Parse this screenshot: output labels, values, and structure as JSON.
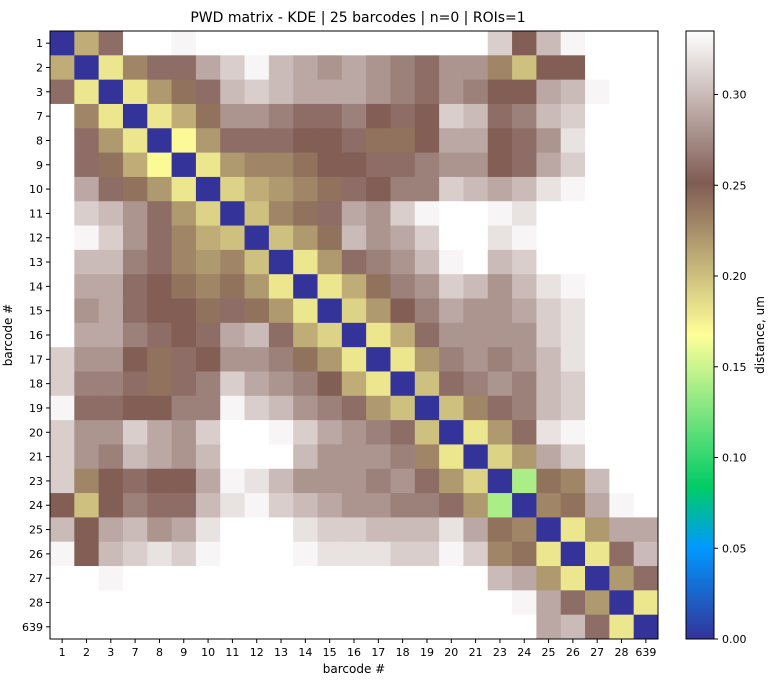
{
  "chart_data": {
    "type": "heatmap",
    "title": "PWD matrix - KDE | 25 barcodes | n=0 | ROIs=1",
    "xlabel": "barcode #",
    "ylabel": "barcode #",
    "categories": [
      "1",
      "2",
      "3",
      "7",
      "8",
      "9",
      "10",
      "11",
      "12",
      "13",
      "14",
      "15",
      "16",
      "17",
      "18",
      "19",
      "20",
      "21",
      "23",
      "24",
      "25",
      "26",
      "27",
      "28",
      "639"
    ],
    "colorbar": {
      "label": "distance, um",
      "ticks": [
        "0.00",
        "0.05",
        "0.10",
        "0.15",
        "0.20",
        "0.25",
        "0.30"
      ],
      "tick_values": [
        0,
        0.05,
        0.1,
        0.15,
        0.2,
        0.25,
        0.3
      ],
      "vmin": 0,
      "vmax": 0.335,
      "colormap": "terrain",
      "missing_color": "#ffffff"
    },
    "values": [
      [
        0.0,
        0.21,
        0.26,
        null,
        null,
        0.33,
        null,
        null,
        null,
        null,
        null,
        null,
        null,
        null,
        null,
        null,
        null,
        null,
        0.31,
        0.25,
        0.3,
        0.33,
        null,
        null,
        null
      ],
      [
        0.21,
        0.0,
        0.18,
        0.23,
        0.26,
        0.26,
        0.29,
        0.31,
        0.33,
        0.3,
        0.29,
        0.28,
        0.29,
        0.28,
        0.27,
        0.26,
        0.28,
        0.28,
        0.23,
        0.2,
        0.25,
        0.25,
        null,
        null,
        null
      ],
      [
        0.26,
        0.18,
        0.0,
        0.18,
        0.22,
        0.24,
        0.26,
        0.3,
        0.31,
        0.3,
        0.29,
        0.29,
        0.29,
        0.28,
        0.27,
        0.26,
        0.28,
        0.27,
        0.25,
        0.25,
        0.29,
        0.3,
        0.33,
        null,
        null
      ],
      [
        null,
        0.23,
        0.18,
        0.0,
        0.18,
        0.21,
        0.24,
        0.28,
        0.28,
        0.27,
        0.26,
        0.26,
        0.27,
        0.25,
        0.26,
        0.25,
        0.31,
        0.3,
        0.26,
        0.27,
        0.3,
        0.31,
        null,
        null,
        null
      ],
      [
        null,
        0.26,
        0.22,
        0.18,
        0.0,
        0.17,
        0.22,
        0.26,
        0.26,
        0.26,
        0.25,
        0.25,
        0.26,
        0.24,
        0.24,
        0.25,
        0.29,
        0.29,
        0.25,
        0.26,
        0.28,
        0.32,
        null,
        null,
        null
      ],
      [
        null,
        0.26,
        0.24,
        0.21,
        0.17,
        0.0,
        0.18,
        0.22,
        0.23,
        0.23,
        0.24,
        0.25,
        0.25,
        0.26,
        0.26,
        0.27,
        0.28,
        0.28,
        0.25,
        0.26,
        0.29,
        0.31,
        null,
        null,
        null
      ],
      [
        null,
        0.29,
        0.26,
        0.24,
        0.22,
        0.18,
        0.0,
        0.19,
        0.21,
        0.22,
        0.23,
        0.24,
        0.26,
        0.25,
        0.27,
        0.27,
        0.31,
        0.3,
        0.29,
        0.3,
        0.32,
        0.33,
        null,
        null,
        null
      ],
      [
        null,
        0.31,
        0.3,
        0.28,
        0.26,
        0.22,
        0.19,
        0.0,
        0.2,
        0.23,
        0.24,
        0.26,
        0.29,
        0.28,
        0.31,
        0.33,
        null,
        null,
        0.33,
        0.32,
        null,
        null,
        null,
        null,
        null
      ],
      [
        null,
        0.33,
        0.31,
        0.28,
        0.26,
        0.23,
        0.21,
        0.2,
        0.0,
        0.2,
        0.22,
        0.24,
        0.3,
        0.28,
        0.29,
        0.31,
        null,
        null,
        0.32,
        0.33,
        null,
        null,
        null,
        null,
        null
      ],
      [
        null,
        0.3,
        0.3,
        0.27,
        0.26,
        0.23,
        0.22,
        0.23,
        0.2,
        0.0,
        0.18,
        0.22,
        0.26,
        0.27,
        0.28,
        0.3,
        0.33,
        null,
        0.3,
        0.31,
        null,
        null,
        null,
        null,
        null
      ],
      [
        null,
        0.29,
        0.29,
        0.26,
        0.25,
        0.24,
        0.23,
        0.24,
        0.22,
        0.18,
        0.0,
        0.18,
        0.21,
        0.24,
        0.27,
        0.28,
        0.31,
        0.3,
        0.28,
        0.3,
        0.32,
        0.33,
        null,
        null,
        null
      ],
      [
        null,
        0.28,
        0.29,
        0.26,
        0.25,
        0.25,
        0.24,
        0.26,
        0.24,
        0.22,
        0.18,
        0.0,
        0.19,
        0.22,
        0.25,
        0.27,
        0.29,
        0.28,
        0.28,
        0.29,
        0.31,
        0.32,
        null,
        null,
        null
      ],
      [
        null,
        0.29,
        0.29,
        0.27,
        0.26,
        0.25,
        0.26,
        0.29,
        0.3,
        0.26,
        0.21,
        0.19,
        0.0,
        0.18,
        0.21,
        0.26,
        0.28,
        0.28,
        0.28,
        0.28,
        0.31,
        0.32,
        null,
        null,
        null
      ],
      [
        0.31,
        0.28,
        0.28,
        0.25,
        0.24,
        0.26,
        0.25,
        0.28,
        0.28,
        0.27,
        0.24,
        0.22,
        0.18,
        0.0,
        0.18,
        0.22,
        0.27,
        0.28,
        0.27,
        0.28,
        0.3,
        0.32,
        null,
        null,
        null
      ],
      [
        0.31,
        0.27,
        0.27,
        0.26,
        0.24,
        0.26,
        0.27,
        0.31,
        0.29,
        0.28,
        0.27,
        0.25,
        0.21,
        0.18,
        0.0,
        0.2,
        0.26,
        0.27,
        0.28,
        0.27,
        0.3,
        0.31,
        null,
        null,
        null
      ],
      [
        0.33,
        0.26,
        0.26,
        0.25,
        0.25,
        0.27,
        0.27,
        0.33,
        0.31,
        0.3,
        0.28,
        0.27,
        0.26,
        0.22,
        0.2,
        0.0,
        0.2,
        0.23,
        0.26,
        0.27,
        0.3,
        0.31,
        null,
        null,
        null
      ],
      [
        0.31,
        0.28,
        0.28,
        0.31,
        0.29,
        0.28,
        0.31,
        null,
        null,
        0.33,
        0.31,
        0.29,
        0.28,
        0.27,
        0.26,
        0.2,
        0.0,
        0.18,
        0.22,
        0.26,
        0.32,
        0.33,
        null,
        null,
        null
      ],
      [
        0.31,
        0.28,
        0.27,
        0.3,
        0.29,
        0.28,
        0.3,
        null,
        null,
        null,
        0.3,
        0.28,
        0.28,
        0.28,
        0.27,
        0.23,
        0.18,
        0.0,
        0.19,
        0.22,
        0.29,
        0.31,
        null,
        null,
        null
      ],
      [
        0.31,
        0.23,
        0.25,
        0.26,
        0.25,
        0.25,
        0.29,
        0.33,
        0.32,
        0.3,
        0.28,
        0.28,
        0.28,
        0.27,
        0.28,
        0.26,
        0.22,
        0.19,
        0.0,
        0.14,
        0.24,
        0.23,
        0.3,
        null,
        null
      ],
      [
        0.25,
        0.2,
        0.25,
        0.27,
        0.26,
        0.26,
        0.3,
        0.32,
        0.33,
        0.31,
        0.3,
        0.29,
        0.28,
        0.28,
        0.27,
        0.27,
        0.26,
        0.22,
        0.14,
        0.0,
        0.23,
        0.24,
        0.29,
        0.33,
        null
      ],
      [
        0.3,
        0.25,
        0.29,
        0.3,
        0.28,
        0.29,
        0.32,
        null,
        null,
        null,
        0.32,
        0.31,
        0.31,
        0.3,
        0.3,
        0.3,
        0.32,
        0.29,
        0.24,
        0.23,
        0.0,
        0.18,
        0.22,
        0.29,
        0.29
      ],
      [
        0.33,
        0.25,
        0.3,
        0.31,
        0.32,
        0.31,
        0.33,
        null,
        null,
        null,
        0.33,
        0.32,
        0.32,
        0.32,
        0.31,
        0.31,
        0.33,
        0.31,
        0.23,
        0.24,
        0.18,
        0.0,
        0.18,
        0.26,
        0.3
      ],
      [
        null,
        null,
        0.33,
        null,
        null,
        null,
        null,
        null,
        null,
        null,
        null,
        null,
        null,
        null,
        null,
        null,
        null,
        null,
        0.3,
        0.29,
        0.22,
        0.18,
        0.0,
        0.22,
        0.26
      ],
      [
        null,
        null,
        null,
        null,
        null,
        null,
        null,
        null,
        null,
        null,
        null,
        null,
        null,
        null,
        null,
        null,
        null,
        null,
        null,
        0.33,
        0.29,
        0.26,
        0.22,
        0.0,
        0.18
      ],
      [
        null,
        null,
        null,
        null,
        null,
        null,
        null,
        null,
        null,
        null,
        null,
        null,
        null,
        null,
        null,
        null,
        null,
        null,
        null,
        null,
        0.29,
        0.3,
        0.26,
        0.18,
        0.0
      ]
    ]
  }
}
